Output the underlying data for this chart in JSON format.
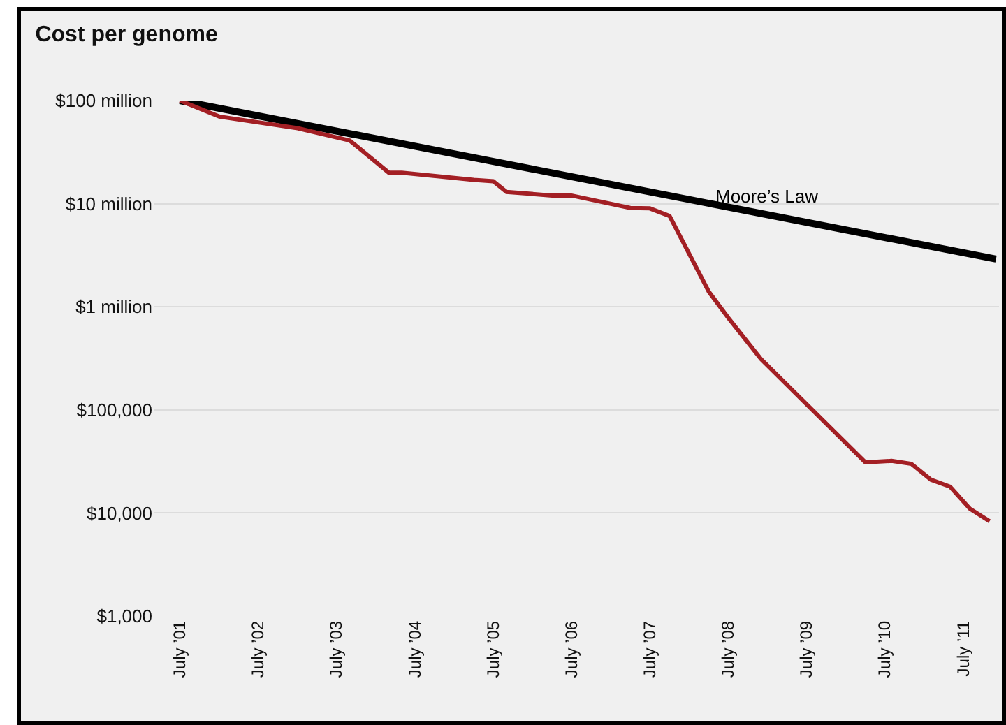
{
  "chart_data": {
    "type": "line",
    "title": "Cost per genome",
    "log": "y",
    "grid": "y",
    "legend": false,
    "marker": "none",
    "line_style": "solid",
    "xlim": [
      "2001-03-01",
      "2011-12-15"
    ],
    "xticks": [
      {
        "value": "2001-07",
        "label": "July ’01"
      },
      {
        "value": "2002-07",
        "label": "July ’02"
      },
      {
        "value": "2003-07",
        "label": "July ’03"
      },
      {
        "value": "2004-07",
        "label": "July ’04"
      },
      {
        "value": "2005-07",
        "label": "July ’05"
      },
      {
        "value": "2006-07",
        "label": "July ’06"
      },
      {
        "value": "2007-07",
        "label": "July ’07"
      },
      {
        "value": "2008-07",
        "label": "July ’08"
      },
      {
        "value": "2009-07",
        "label": "July ’09"
      },
      {
        "value": "2010-07",
        "label": "July ’10"
      },
      {
        "value": "2011-07",
        "label": "July ’11"
      }
    ],
    "ylim": [
      1000,
      100000000
    ],
    "yticks": [
      {
        "value": 1000,
        "label": "$1,000"
      },
      {
        "value": 10000,
        "label": "$10,000"
      },
      {
        "value": 100000,
        "label": "$100,000"
      },
      {
        "value": 1000000,
        "label": "$1 million"
      },
      {
        "value": 10000000,
        "label": "$10 million"
      },
      {
        "value": 100000000,
        "label": "$100 million"
      }
    ],
    "series": [
      {
        "name": "Moore’s Law",
        "color": "#000000",
        "x": [
          "2001-07",
          "2011-12"
        ],
        "values": [
          100000000,
          2900000
        ]
      },
      {
        "color": "#a31f24",
        "x": [
          "2001-07",
          "2002-01",
          "2003-01",
          "2003-09",
          "2004-03",
          "2004-05",
          "2005-04",
          "2005-07",
          "2005-09",
          "2006-04",
          "2006-07",
          "2007-04",
          "2007-07",
          "2007-10",
          "2008-04",
          "2008-07",
          "2008-12",
          "2009-08",
          "2010-04",
          "2010-08",
          "2010-11",
          "2011-02",
          "2011-05",
          "2011-08",
          "2011-11"
        ],
        "values": [
          100000000,
          70000000,
          54000000,
          41000000,
          20000000,
          20000000,
          17000000,
          16500000,
          13000000,
          12000000,
          12000000,
          9100000,
          9000000,
          7600000,
          1400000,
          780000,
          310000,
          98000,
          31000,
          32000,
          30000,
          21000,
          18000,
          11000,
          8300
        ]
      }
    ]
  }
}
